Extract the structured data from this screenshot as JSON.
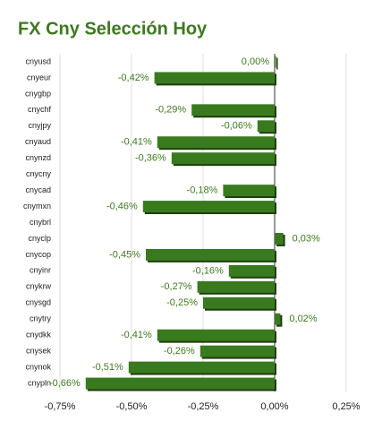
{
  "chart_data": {
    "type": "bar",
    "orientation": "horizontal",
    "title": "FX Cny Selección Hoy",
    "categories": [
      "cnyusd",
      "cnyeur",
      "cnygbp",
      "cnychf",
      "cnyjpy",
      "cnyaud",
      "cnynzd",
      "cnycny",
      "cnycad",
      "cnymxn",
      "cnybrl",
      "cnyclp",
      "cnycop",
      "cnyinr",
      "cnykrw",
      "cnysgd",
      "cnytry",
      "cnydkk",
      "cnysek",
      "cnynok",
      "cnypln"
    ],
    "values": [
      0.0,
      -0.42,
      null,
      -0.29,
      -0.06,
      -0.41,
      -0.36,
      null,
      -0.18,
      -0.46,
      null,
      0.03,
      -0.45,
      -0.16,
      -0.27,
      -0.25,
      0.02,
      -0.41,
      -0.26,
      -0.51,
      -0.66
    ],
    "value_labels": [
      "0,00%",
      "-0,42%",
      null,
      "-0,29%",
      "-0,06%",
      "-0,41%",
      "-0,36%",
      null,
      "-0,18%",
      "-0,46%",
      null,
      "0,03%",
      "-0,45%",
      "-0,16%",
      "-0,27%",
      "-0,25%",
      "0,02%",
      "-0,41%",
      "-0,26%",
      "-0,51%",
      "-0,66%"
    ],
    "color": "#3a7a1f",
    "xlim": [
      -0.75,
      0.3
    ],
    "xticks": [
      {
        "value": -0.75,
        "label": "-0,75%"
      },
      {
        "value": -0.5,
        "label": "-0,50%"
      },
      {
        "value": -0.25,
        "label": "-0,25%"
      },
      {
        "value": 0,
        "label": "0,00%"
      },
      {
        "value": 0.25,
        "label": "0,25%"
      }
    ],
    "grid": true
  }
}
